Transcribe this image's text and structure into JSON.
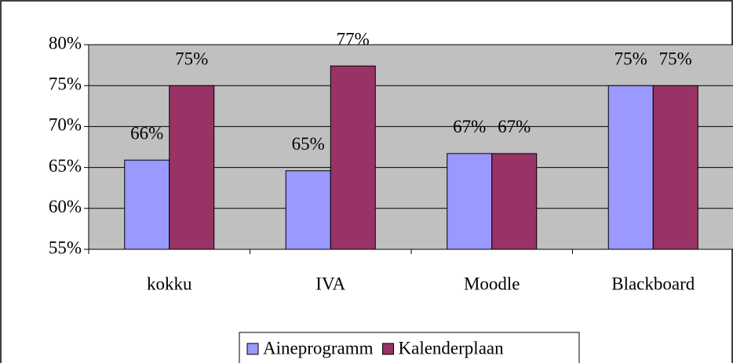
{
  "chart_data": {
    "type": "bar",
    "categories": [
      "kokku",
      "IVA",
      "Moodle",
      "Blackboard"
    ],
    "series": [
      {
        "name": "Aineprogramm",
        "color": "#9999ff",
        "values": [
          65.9,
          64.6,
          66.7,
          75
        ],
        "value_labels": [
          "66%",
          "65%",
          "67%",
          "75%"
        ]
      },
      {
        "name": "Kalenderplaan",
        "color": "#993366",
        "values": [
          75,
          77.4,
          66.7,
          75
        ],
        "value_labels": [
          "75%",
          "77%",
          "67%",
          "75%"
        ]
      }
    ],
    "ylim": [
      55,
      80
    ],
    "yticks": [
      {
        "value": 55,
        "label": "55%"
      },
      {
        "value": 60,
        "label": "60%"
      },
      {
        "value": 65,
        "label": "65%"
      },
      {
        "value": 70,
        "label": "70%"
      },
      {
        "value": 75,
        "label": "75%"
      },
      {
        "value": 80,
        "label": "80%"
      }
    ],
    "grid": true,
    "plot_background": "#c0c0c0",
    "legend": "bottom"
  }
}
